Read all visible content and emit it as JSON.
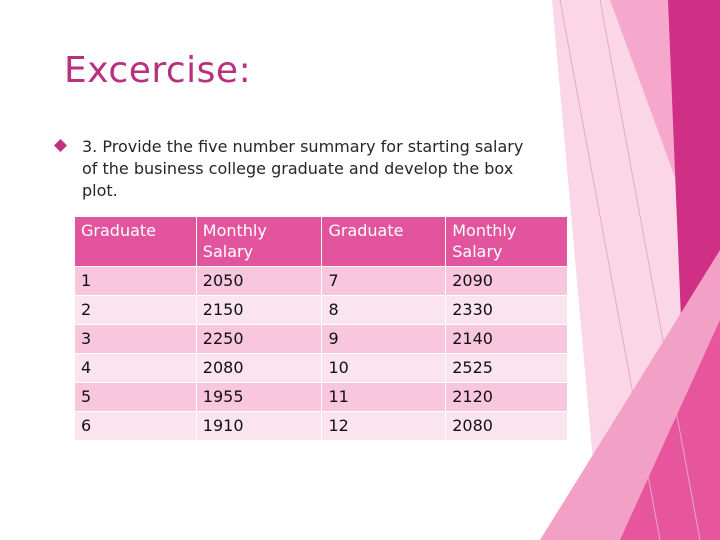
{
  "slide": {
    "title": "Excercise:",
    "bullet": "3. Provide the five number summary for starting salary\nof the business college graduate and develop the box\nplot."
  },
  "table": {
    "headers": [
      "Graduate",
      "Monthly Salary",
      "Graduate",
      "Monthly Salary"
    ],
    "rows": [
      [
        "1",
        "2050",
        "7",
        "2090"
      ],
      [
        "2",
        "2150",
        "8",
        "2330"
      ],
      [
        "3",
        "2250",
        "9",
        "2140"
      ],
      [
        "4",
        "2080",
        "10",
        "2525"
      ],
      [
        "5",
        "1955",
        "11",
        "2120"
      ],
      [
        "6",
        "1910",
        "12",
        "2080"
      ]
    ]
  },
  "colors": {
    "title": "#b8317e",
    "header_bg": "#e2559e",
    "row_odd": "#f8c7dd",
    "row_even": "#fbe4ee",
    "accent_dark": "#d4338b",
    "accent_light": "#f6b4d4"
  }
}
